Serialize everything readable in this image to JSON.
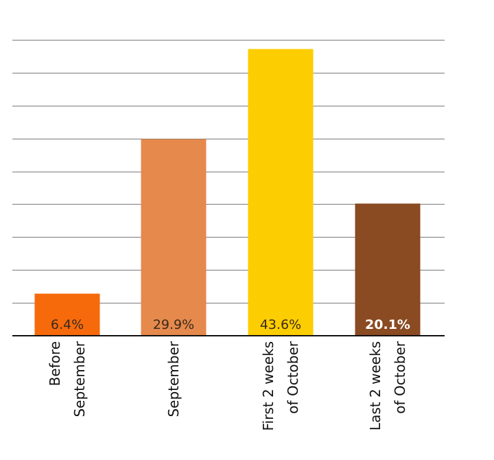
{
  "chart_data": {
    "type": "bar",
    "title": "",
    "xlabel": "",
    "ylabel": "",
    "categories": [
      [
        "Before",
        "September"
      ],
      [
        "September"
      ],
      [
        "First 2 weeks",
        "of October"
      ],
      [
        "Last 2 weeks",
        "of October"
      ]
    ],
    "values": [
      6.4,
      29.9,
      43.6,
      20.1
    ],
    "value_labels": [
      "6.4%",
      "29.9%",
      "43.6%",
      "20.1%"
    ],
    "colors": [
      "#F76A0B",
      "#E5894C",
      "#FCCD00",
      "#8A4A22"
    ],
    "value_label_colors": [
      "#3a2a1a",
      "#3a2a1a",
      "#3a2a1a",
      "#ffffff"
    ],
    "ylim": [
      0,
      45
    ],
    "grid": true,
    "gridline_count": 9,
    "legend": "none"
  }
}
